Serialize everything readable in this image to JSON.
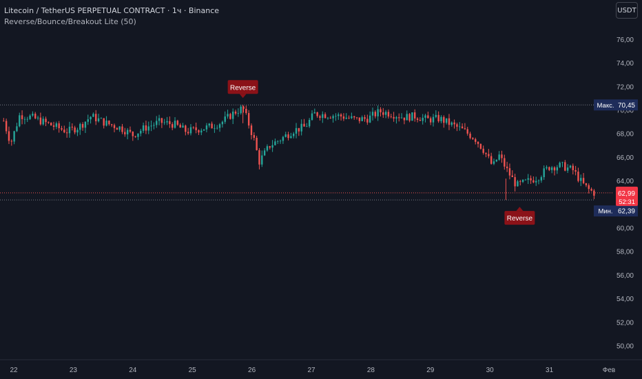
{
  "header": {
    "title": "Litecoin / TetherUS PERPETUAL CONTRACT · 1ч · Binance",
    "indicator": "Reverse/Bounce/Breakout Lite (50)",
    "currency_button": "USDT"
  },
  "colors": {
    "background": "#131722",
    "bull": "#26a69a",
    "bear": "#ef5350",
    "axis_text": "#b2b5be",
    "signal_label": "#8b1218",
    "price_label": "#f23645",
    "hl_label": "#1e2c5a"
  },
  "chart_data": {
    "type": "candlestick",
    "title": "Litecoin / TetherUS PERPETUAL CONTRACT · 1ч · Binance",
    "ylim": [
      48.5,
      78.6
    ],
    "y_ticks": [
      "50,00",
      "52,00",
      "54,00",
      "56,00",
      "58,00",
      "60,00",
      "62,00",
      "64,00",
      "66,00",
      "68,00",
      "70,00",
      "72,00",
      "74,00",
      "76,00"
    ],
    "x_ticks": [
      "22",
      "23",
      "24",
      "25",
      "26",
      "27",
      "28",
      "29",
      "30",
      "31",
      "Фев"
    ],
    "x_range_days": [
      21.83,
      32.2
    ],
    "max": {
      "label": "Макс.",
      "value": "70,45"
    },
    "min": {
      "label": "Мин.",
      "value": "62,39"
    },
    "current": {
      "value": "62,99",
      "countdown": "52:31"
    },
    "signals": [
      {
        "text": "Reverse",
        "side": "above",
        "day": 25.85,
        "price": 70.45
      },
      {
        "text": "Reverse",
        "side": "below",
        "day": 30.5,
        "price": 62.39
      }
    ],
    "close_path": [
      [
        21.83,
        69.1
      ],
      [
        21.95,
        67.2
      ],
      [
        22.1,
        69.6
      ],
      [
        22.3,
        69.4
      ],
      [
        22.5,
        69.0
      ],
      [
        22.7,
        68.6
      ],
      [
        22.9,
        68.2
      ],
      [
        23.1,
        68.6
      ],
      [
        23.3,
        69.5
      ],
      [
        23.55,
        68.9
      ],
      [
        23.8,
        68.5
      ],
      [
        24.0,
        67.9
      ],
      [
        24.2,
        68.5
      ],
      [
        24.45,
        69.0
      ],
      [
        24.7,
        68.8
      ],
      [
        24.9,
        68.2
      ],
      [
        25.1,
        68.4
      ],
      [
        25.3,
        68.6
      ],
      [
        25.5,
        69.0
      ],
      [
        25.7,
        69.8
      ],
      [
        25.85,
        70.2
      ],
      [
        25.95,
        68.8
      ],
      [
        26.05,
        67.3
      ],
      [
        26.12,
        65.6
      ],
      [
        26.3,
        67.0
      ],
      [
        26.5,
        67.6
      ],
      [
        26.7,
        68.3
      ],
      [
        26.9,
        68.6
      ],
      [
        27.05,
        69.7
      ],
      [
        27.3,
        69.6
      ],
      [
        27.5,
        69.5
      ],
      [
        27.75,
        69.2
      ],
      [
        27.95,
        69.3
      ],
      [
        28.15,
        69.9
      ],
      [
        28.35,
        69.7
      ],
      [
        28.55,
        69.4
      ],
      [
        28.75,
        69.5
      ],
      [
        28.95,
        69.2
      ],
      [
        29.15,
        69.3
      ],
      [
        29.35,
        68.8
      ],
      [
        29.55,
        68.3
      ],
      [
        29.75,
        67.6
      ],
      [
        29.9,
        66.6
      ],
      [
        30.05,
        65.2
      ],
      [
        30.15,
        66.2
      ],
      [
        30.3,
        64.8
      ],
      [
        30.45,
        63.6
      ],
      [
        30.6,
        63.9
      ],
      [
        30.8,
        64.3
      ],
      [
        31.0,
        65.2
      ],
      [
        31.2,
        65.3
      ],
      [
        31.4,
        64.9
      ],
      [
        31.55,
        63.8
      ],
      [
        31.65,
        63.3
      ],
      [
        31.75,
        63.0
      ]
    ],
    "candle_count": 225,
    "seed": 7
  }
}
